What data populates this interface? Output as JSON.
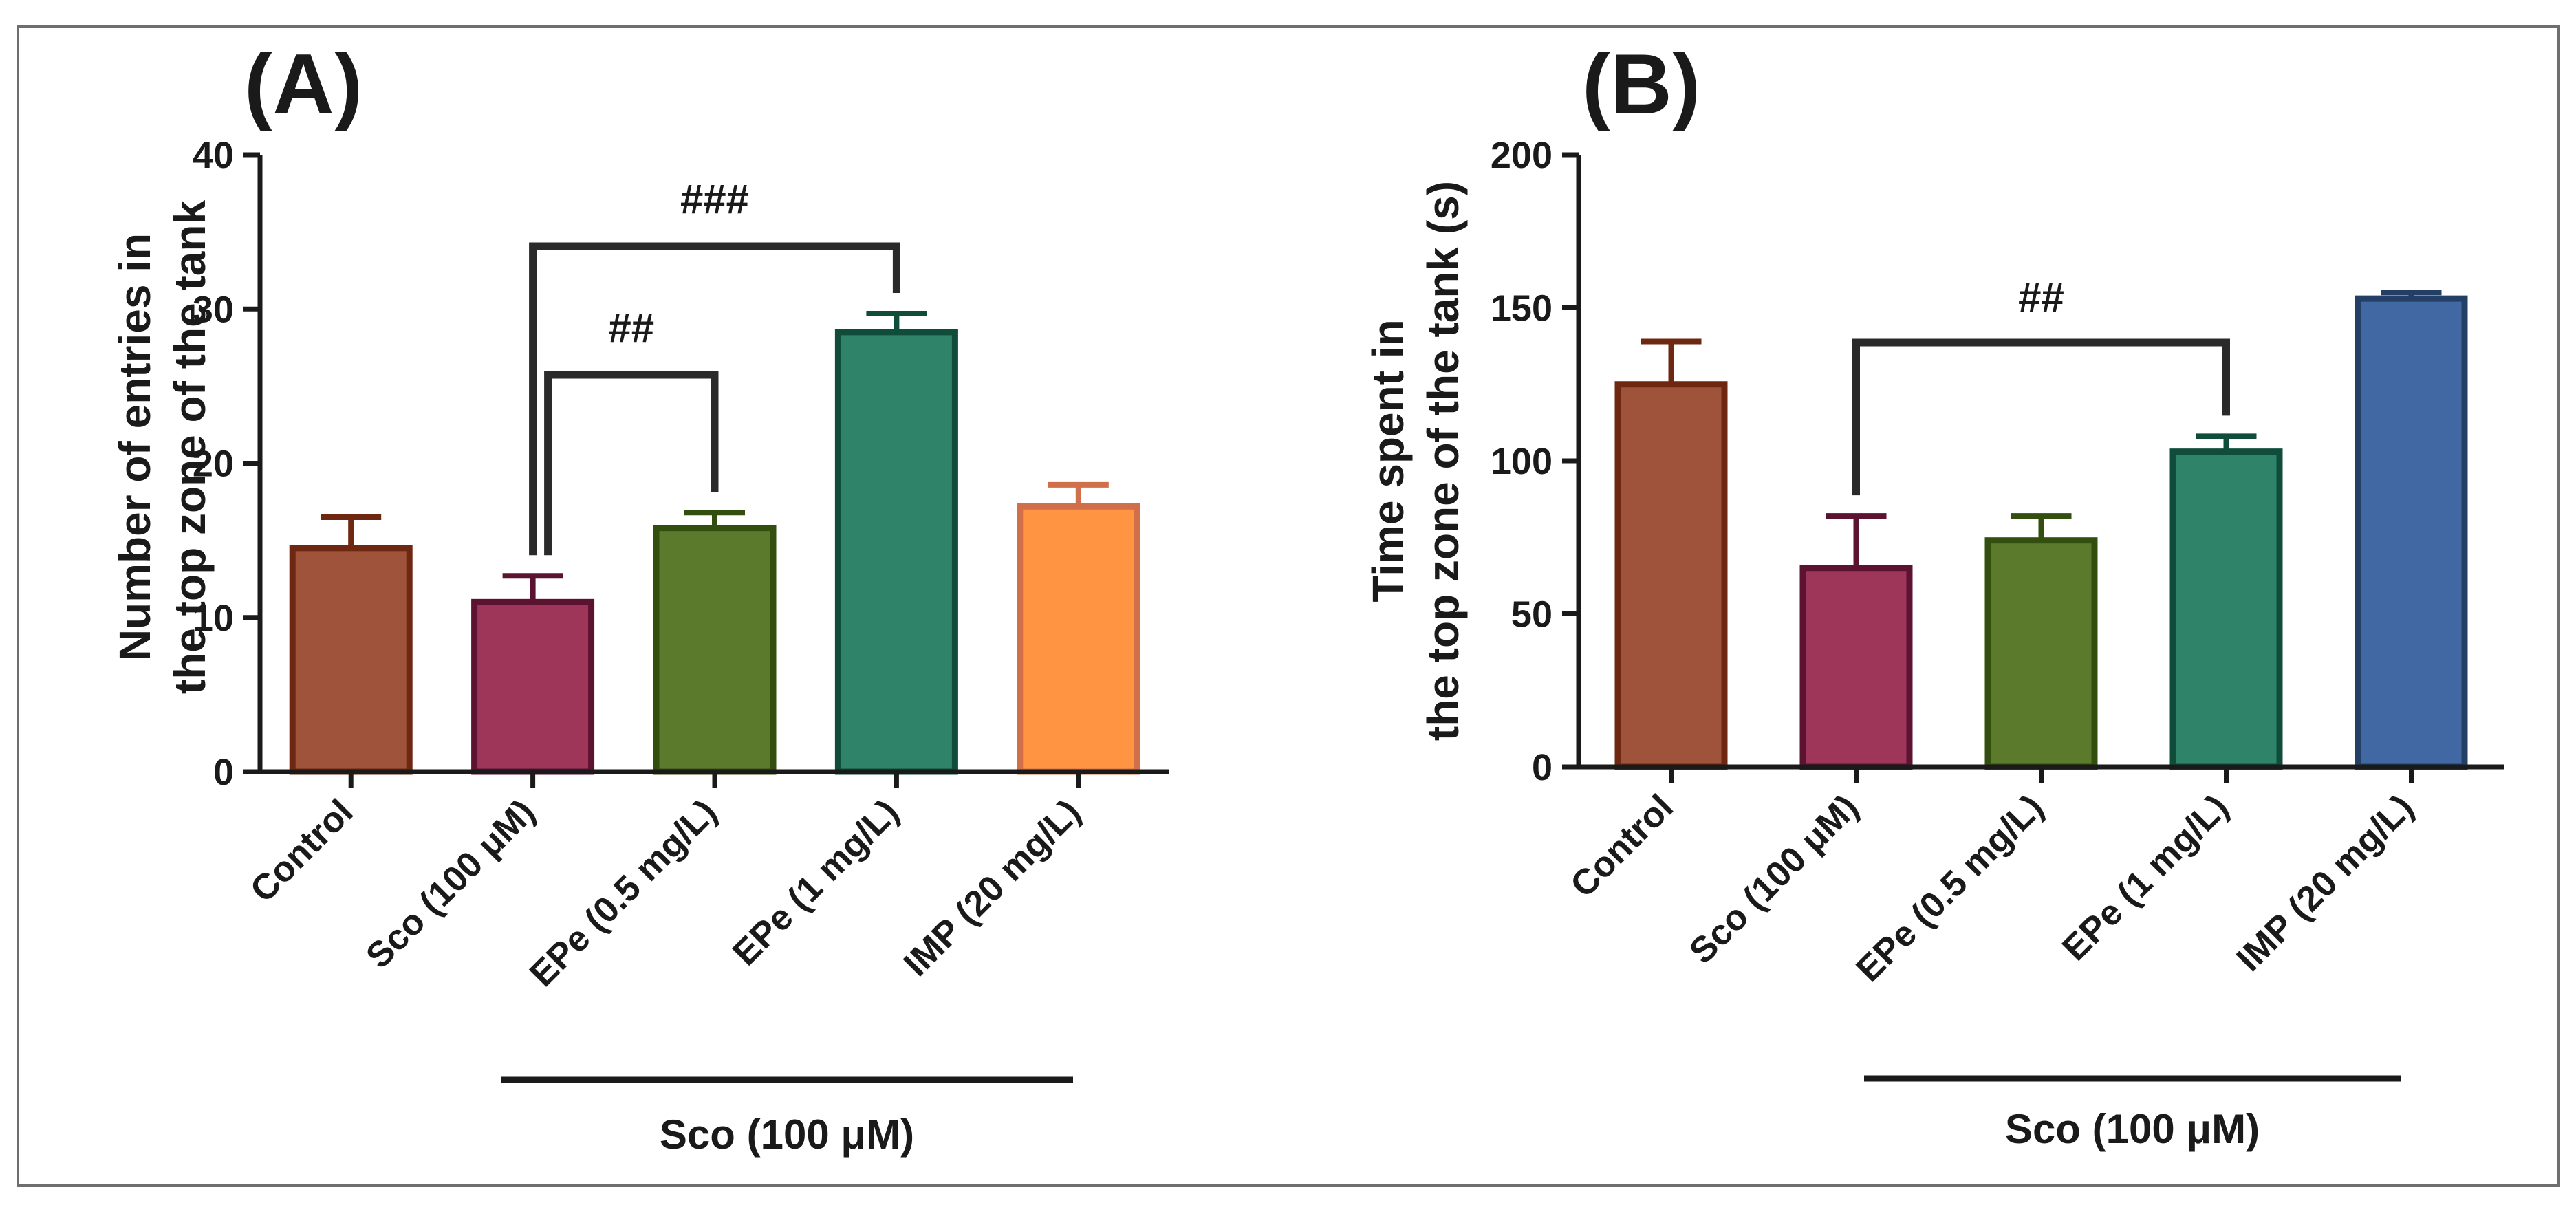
{
  "chart_data": [
    {
      "panel": "(A)",
      "type": "bar",
      "ylabel": [
        "Number of entries in",
        "the top zone of the tank"
      ],
      "ylim": [
        0,
        40
      ],
      "yticks": [
        0,
        10,
        20,
        30,
        40
      ],
      "categories": [
        "Control",
        "Sco (100 μM)",
        "EPe (0.5 mg/L)",
        "EPe (1 mg/L)",
        "IMP (20 mg/L)"
      ],
      "values": [
        14.5,
        11,
        15.8,
        28.5,
        17.2
      ],
      "errors": [
        2,
        1.7,
        1,
        1.2,
        1.4
      ],
      "fill_colors": [
        "#a0533b",
        "#9e3659",
        "#5c7a2c",
        "#2e8369",
        "#ff9442"
      ],
      "edge_colors": [
        "#6e2710",
        "#5b1331",
        "#334f0f",
        "#0f4d3a",
        "#d16f4a"
      ],
      "group_label": "Sco (100 μM)",
      "group_from": 1,
      "group_to": 4,
      "significance": [
        {
          "from": 1,
          "to": 2,
          "label": "##"
        },
        {
          "from": 1,
          "to": 3,
          "label": "###"
        }
      ]
    },
    {
      "panel": "(B)",
      "type": "bar",
      "ylabel": [
        "Time spent in",
        "the top zone of the tank (s)"
      ],
      "ylim": [
        0,
        200
      ],
      "yticks": [
        0,
        50,
        100,
        150,
        200
      ],
      "categories": [
        "Control",
        "Sco (100 μM)",
        "EPe (0.5 mg/L)",
        "EPe (1 mg/L)",
        "IMP (20 mg/L)"
      ],
      "values": [
        125,
        65,
        74,
        103,
        153
      ],
      "errors": [
        14,
        17,
        8,
        5,
        2
      ],
      "fill_colors": [
        "#a0533b",
        "#9e3659",
        "#5c7a2c",
        "#2e8369",
        "#4168a2"
      ],
      "edge_colors": [
        "#6e2710",
        "#5b1331",
        "#334f0f",
        "#0f4d3a",
        "#233f66"
      ],
      "group_label": "Sco (100 μM)",
      "group_from": 1,
      "group_to": 4,
      "significance": [
        {
          "from": 1,
          "to": 3,
          "label": "##"
        }
      ]
    }
  ]
}
